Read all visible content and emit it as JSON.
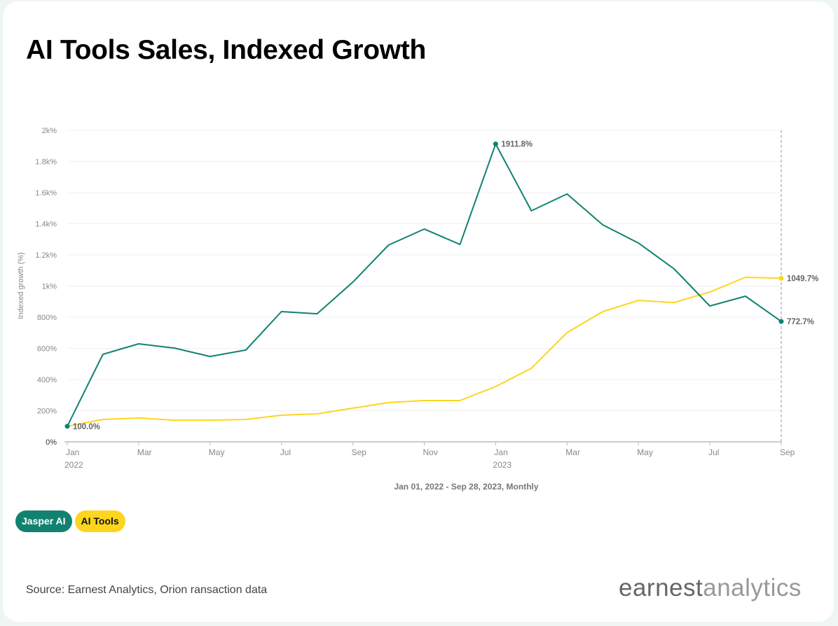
{
  "title": "AI Tools Sales, Indexed Growth",
  "chart_data": {
    "type": "line",
    "title": "AI Tools Sales, Indexed Growth",
    "xlabel": "Jan 01, 2022 - Sep 28, 2023, Monthly",
    "ylabel": "Indexed growth (%)",
    "ylim": [
      0,
      2000
    ],
    "yticks": [
      {
        "value": 0,
        "label": "0%"
      },
      {
        "value": 200,
        "label": "200%"
      },
      {
        "value": 400,
        "label": "400%"
      },
      {
        "value": 600,
        "label": "600%"
      },
      {
        "value": 800,
        "label": "800%"
      },
      {
        "value": 1000,
        "label": "1k%"
      },
      {
        "value": 1200,
        "label": "1.2k%"
      },
      {
        "value": 1400,
        "label": "1.4k%"
      },
      {
        "value": 1600,
        "label": "1.6k%"
      },
      {
        "value": 1800,
        "label": "1.8k%"
      },
      {
        "value": 2000,
        "label": "2k%"
      }
    ],
    "x": [
      "2022-01",
      "2022-02",
      "2022-03",
      "2022-04",
      "2022-05",
      "2022-06",
      "2022-07",
      "2022-08",
      "2022-09",
      "2022-10",
      "2022-11",
      "2022-12",
      "2023-01",
      "2023-02",
      "2023-03",
      "2023-04",
      "2023-05",
      "2023-06",
      "2023-07",
      "2023-08",
      "2023-09"
    ],
    "xticks": [
      {
        "index": 0,
        "label": "Jan",
        "sub": "2022"
      },
      {
        "index": 2,
        "label": "Mar"
      },
      {
        "index": 4,
        "label": "May"
      },
      {
        "index": 6,
        "label": "Jul"
      },
      {
        "index": 8,
        "label": "Sep"
      },
      {
        "index": 10,
        "label": "Nov"
      },
      {
        "index": 12,
        "label": "Jan",
        "sub": "2023"
      },
      {
        "index": 14,
        "label": "Mar"
      },
      {
        "index": 16,
        "label": "May"
      },
      {
        "index": 18,
        "label": "Jul"
      },
      {
        "index": 20,
        "label": "Sep"
      }
    ],
    "grid": true,
    "series": [
      {
        "name": "Jasper AI",
        "color": "#128270",
        "values": [
          100,
          562,
          629,
          602,
          548,
          589,
          836,
          822,
          1025,
          1263,
          1366,
          1267,
          1911.8,
          1483,
          1591,
          1393,
          1276,
          1110,
          872,
          935,
          772.7
        ],
        "annotations": [
          {
            "index": 0,
            "label": "100.0%"
          },
          {
            "index": 12,
            "label": "1911.8%"
          },
          {
            "index": 20,
            "label": "772.7%"
          }
        ]
      },
      {
        "name": "AI Tools",
        "color": "#fdd51e",
        "values": [
          100,
          144,
          153,
          139,
          139,
          144,
          171,
          180,
          216,
          252,
          265,
          265,
          355,
          472,
          701,
          836,
          908,
          894,
          962,
          1056,
          1049.7
        ],
        "annotations": [
          {
            "index": 20,
            "label": "1049.7%"
          }
        ]
      }
    ],
    "legend": "bottom-left"
  },
  "legend": {
    "jasper": "Jasper AI",
    "aitools": "AI Tools"
  },
  "source": "Source: Earnest Analytics, Orion ransaction data",
  "logo": {
    "bold": "earnest",
    "light": "analytics"
  }
}
